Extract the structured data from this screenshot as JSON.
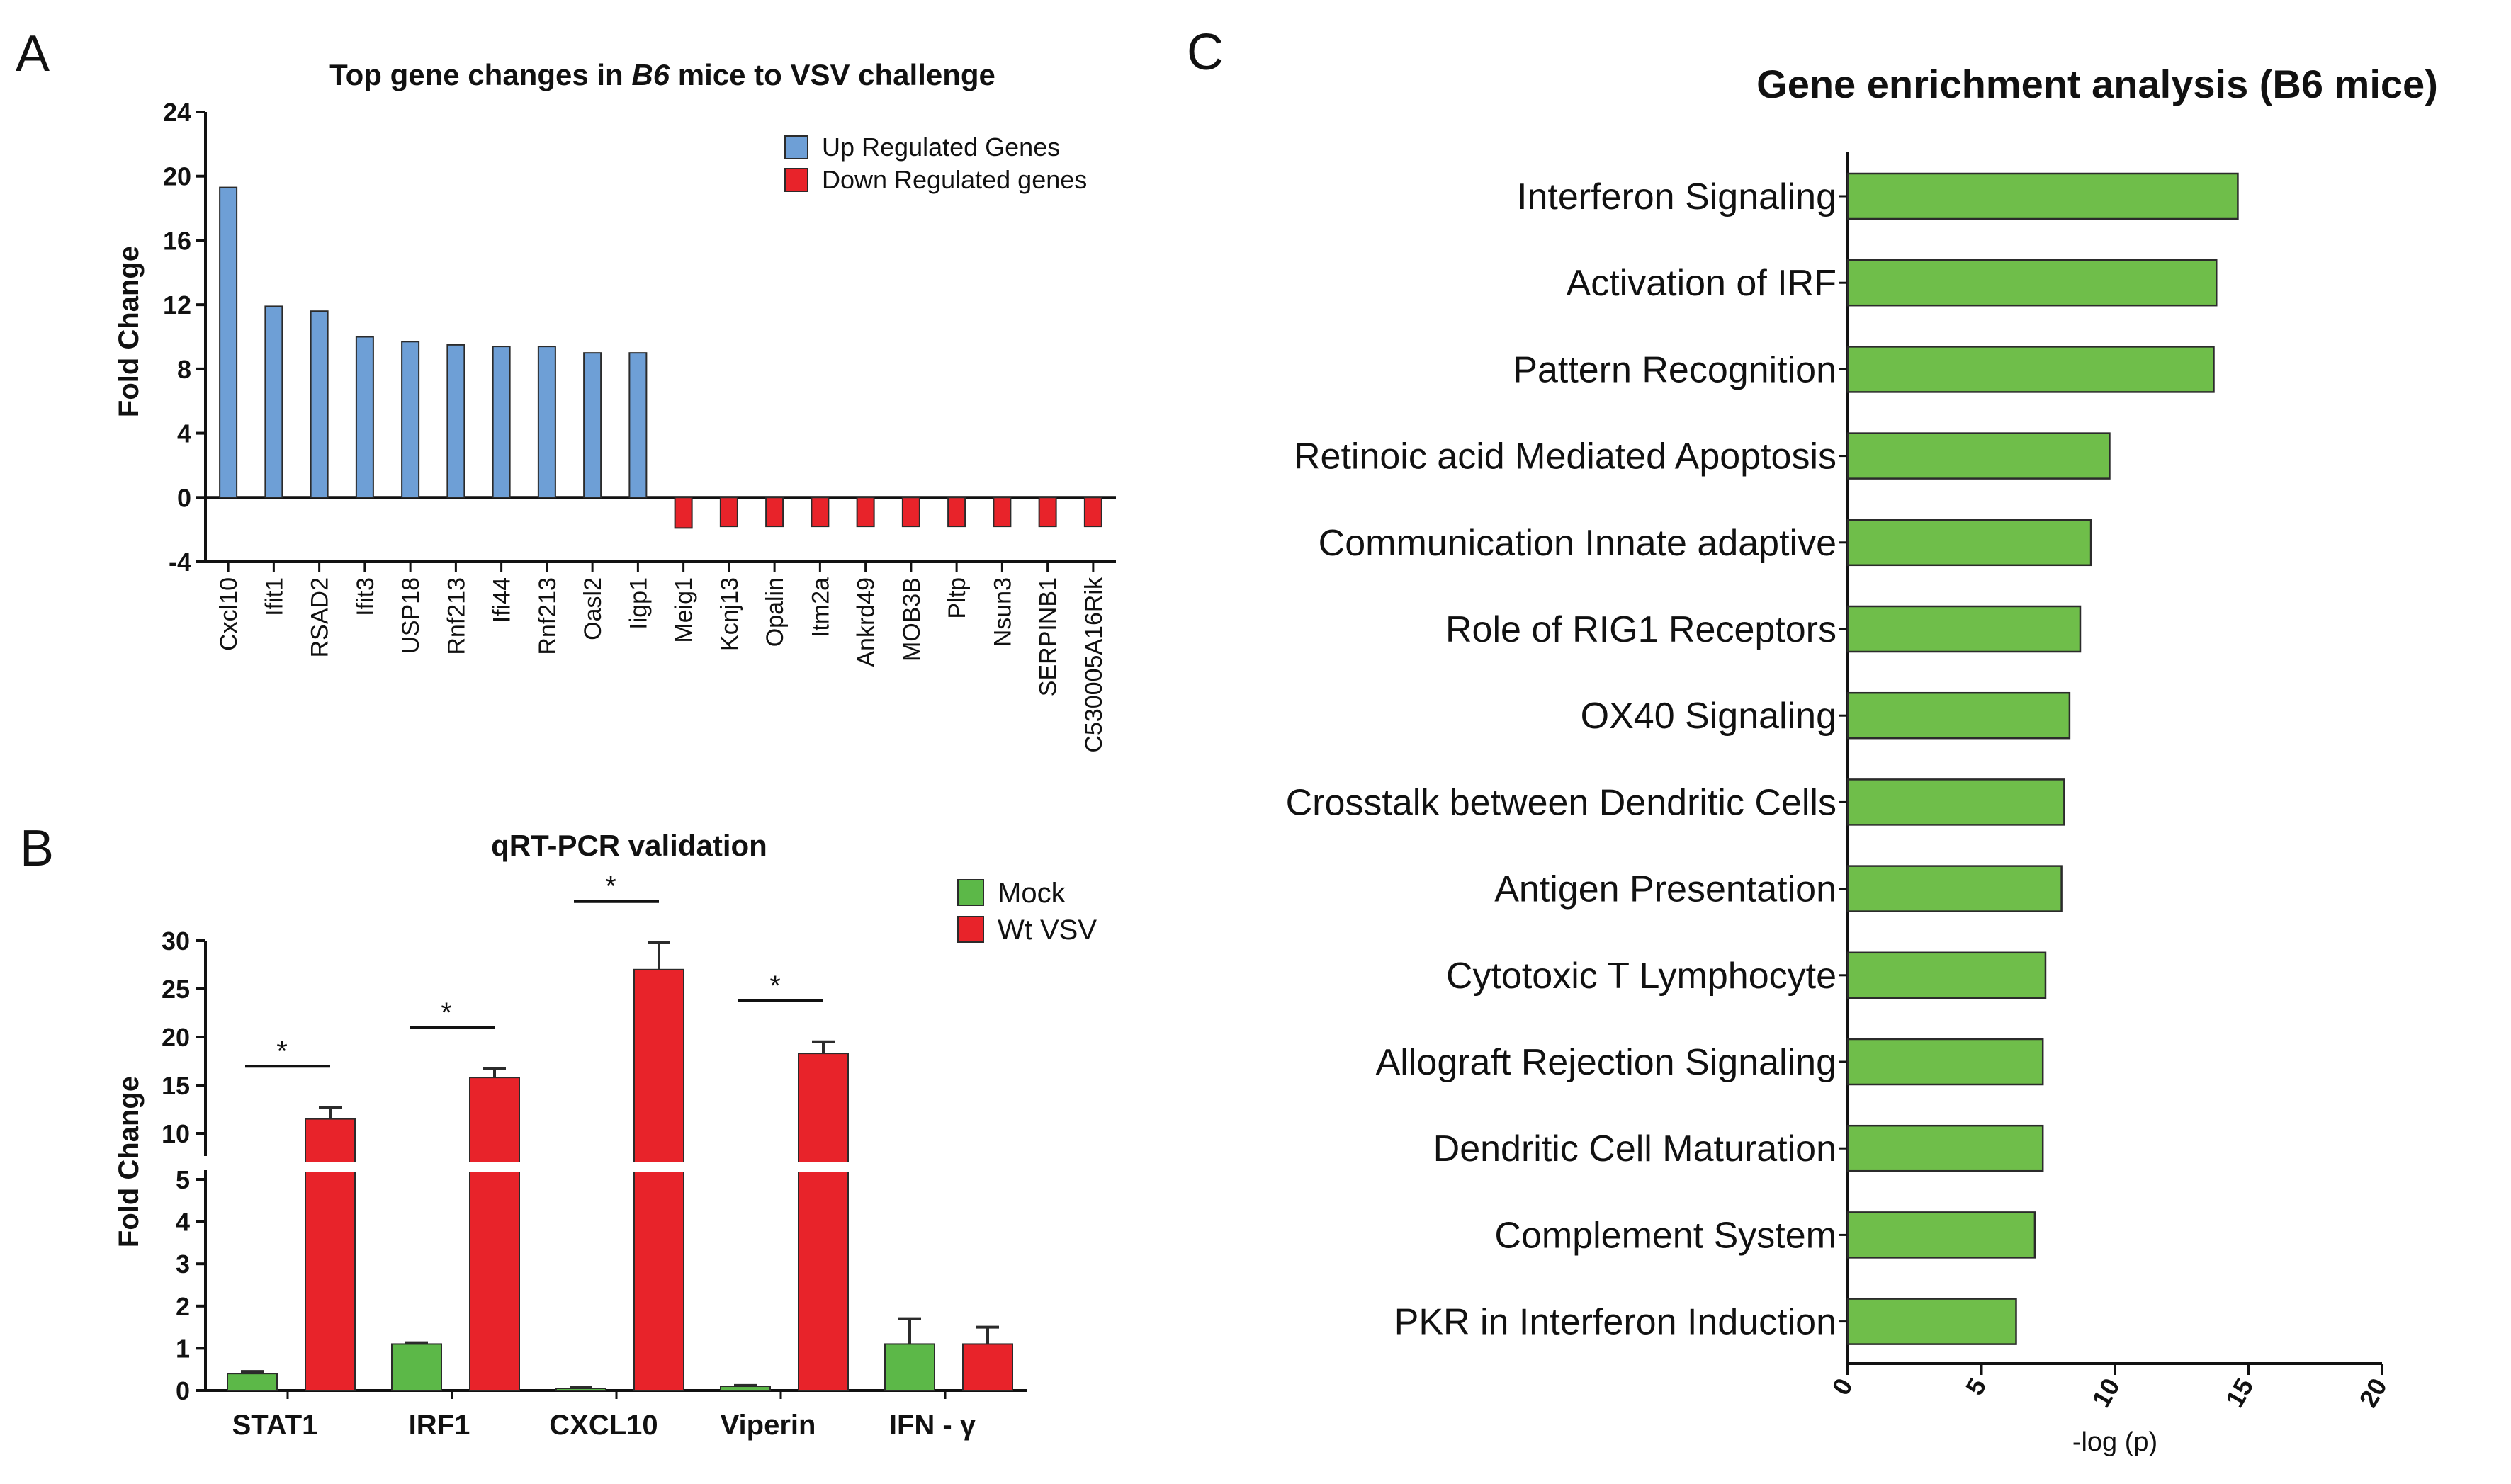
{
  "chart_data": [
    {
      "panel": "A",
      "type": "bar",
      "title_prefix": "Top gene changes in ",
      "title_italic": "B6",
      "title_suffix": " mice to VSV challenge",
      "ylabel": "Fold Change",
      "xlabel": "",
      "ylim": [
        -4,
        24
      ],
      "yticks": [
        -4,
        0,
        4,
        8,
        12,
        16,
        20,
        24
      ],
      "legend_position": "top-right",
      "legend": [
        {
          "label": "Up Regulated Genes",
          "color": "#6e9fd6"
        },
        {
          "label": "Down Regulated genes",
          "color": "#e8232a"
        }
      ],
      "categories": [
        "Cxcl10",
        "Ifit1",
        "RSAD2",
        "Ifit3",
        "USP18",
        "Rnf213",
        "Ifi44",
        "Rnf213",
        "Oasl2",
        "Iigp1",
        "Meig1",
        "Kcnj13",
        "Opalin",
        "Itm2a",
        "Ankrd49",
        "MOB3B",
        "Pltp",
        "Nsun3",
        "SERPINB1",
        "C530005A16Rik"
      ],
      "values": [
        19.3,
        11.9,
        11.6,
        10.0,
        9.7,
        9.5,
        9.4,
        9.4,
        9.0,
        9.0,
        -1.9,
        -1.8,
        -1.8,
        -1.8,
        -1.8,
        -1.8,
        -1.8,
        -1.8,
        -1.8,
        -1.8
      ]
    },
    {
      "panel": "B",
      "type": "bar",
      "title": "qRT-PCR validation",
      "ylabel": "Fold Change",
      "xlabel": "",
      "axis_break": [
        5,
        8
      ],
      "ylim": [
        0,
        30
      ],
      "yticks_lower": [
        0,
        1,
        2,
        3,
        4,
        5
      ],
      "yticks_upper": [
        10,
        15,
        20,
        25,
        30
      ],
      "legend_position": "top-right",
      "categories": [
        "STAT1",
        "IRF1",
        "CXCL10",
        "Viperin",
        "IFN - γ"
      ],
      "series": [
        {
          "name": "Mock",
          "color": "#5cb848",
          "values": [
            0.4,
            1.1,
            0.05,
            0.1,
            1.1
          ],
          "errors": [
            0.05,
            0.03,
            0.02,
            0.02,
            0.6
          ]
        },
        {
          "name": "Wt VSV",
          "color": "#e8232a",
          "values": [
            11.5,
            15.8,
            27.0,
            18.3,
            1.1
          ],
          "errors": [
            1.2,
            0.9,
            2.8,
            1.2,
            0.4
          ]
        }
      ],
      "significance": [
        {
          "category_index": 0,
          "label": "*"
        },
        {
          "category_index": 1,
          "label": "*"
        },
        {
          "category_index": 2,
          "label": "*"
        },
        {
          "category_index": 3,
          "label": "*"
        }
      ]
    },
    {
      "panel": "C",
      "type": "bar",
      "orientation": "horizontal",
      "title": "Gene enrichment analysis (B6 mice)",
      "xlabel": "-log (p)",
      "ylabel": "",
      "xlim": [
        0,
        20
      ],
      "xticks": [
        0,
        5,
        10,
        15,
        20
      ],
      "color": "#6fbe4a",
      "categories": [
        "Interferon Signaling",
        "Activation of IRF",
        "Pattern Recognition",
        "Retinoic acid Mediated Apoptosis",
        "Communication  Innate adaptive",
        "Role of RIG1 Receptors",
        "OX40 Signaling ",
        "Crosstalk between Dendritic Cells",
        "Antigen Presentation",
        "Cytotoxic T Lymphocyte",
        "Allograft Rejection Signaling",
        "Dendritic Cell Maturation",
        "Complement System",
        "PKR in Interferon Induction"
      ],
      "values": [
        14.6,
        13.8,
        13.7,
        9.8,
        9.1,
        8.7,
        8.3,
        8.1,
        8.0,
        7.4,
        7.3,
        7.3,
        7.0,
        6.3
      ]
    }
  ],
  "panel_labels": [
    "A",
    "B",
    "C"
  ]
}
